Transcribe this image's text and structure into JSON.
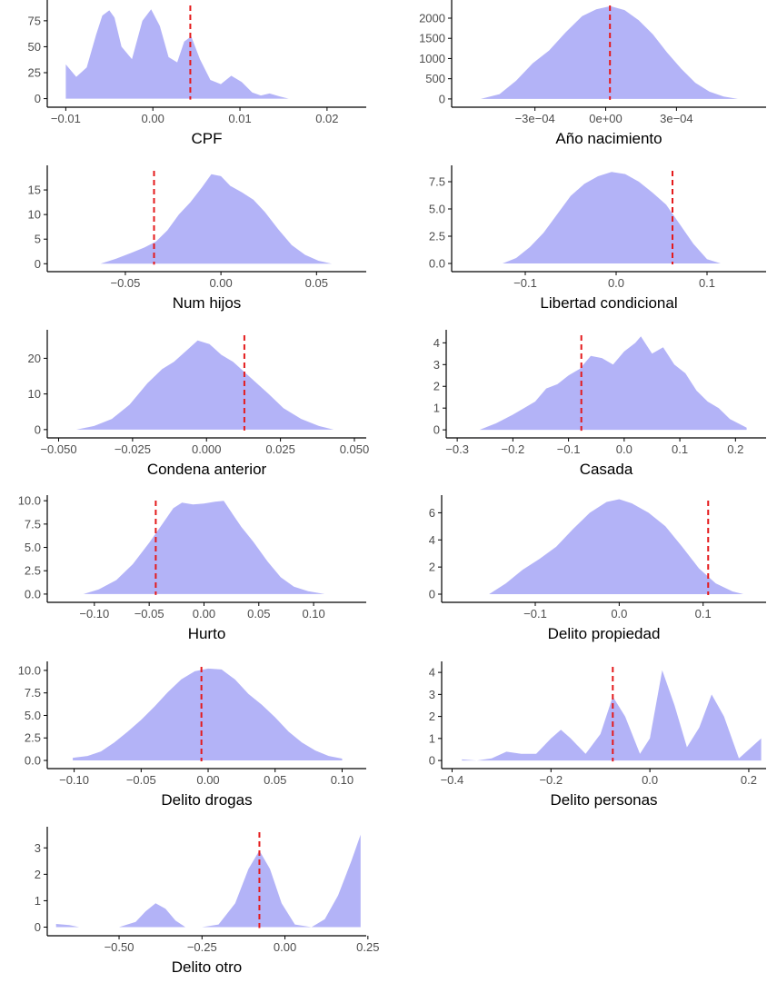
{
  "colors": {
    "density_fill": "#b3b3f7",
    "reference_line": "#e41a1c",
    "axis": "#000000",
    "tick_text": "#4d4d4d"
  },
  "chart_data": [
    {
      "type": "area",
      "xlabel": "CPF",
      "xlim": [
        -0.0115,
        0.0245
      ],
      "ylim": [
        -3,
        95
      ],
      "xticks": [
        -0.01,
        0.0,
        0.01,
        0.02
      ],
      "xtick_labels": [
        "−0.01",
        "0.00",
        "0.01",
        "0.02"
      ],
      "yticks": [
        0,
        25,
        50,
        75
      ],
      "ytick_labels": [
        "0",
        "25",
        "50",
        "75"
      ],
      "vline": 0.0043,
      "density": {
        "x": [
          -0.01,
          -0.0088,
          -0.0076,
          -0.0065,
          -0.0058,
          -0.005,
          -0.0044,
          -0.0036,
          -0.0024,
          -0.0012,
          -0.0002,
          0.0008,
          0.0018,
          0.0028,
          0.0036,
          0.0044,
          0.0054,
          0.0066,
          0.0078,
          0.009,
          0.0102,
          0.0114,
          0.0124,
          0.0134,
          0.0146,
          0.0156
        ],
        "y": [
          33,
          21,
          30,
          62,
          80,
          85,
          78,
          50,
          38,
          75,
          86,
          70,
          40,
          35,
          55,
          60,
          38,
          18,
          14,
          22,
          16,
          6,
          3,
          5,
          2,
          0
        ]
      }
    },
    {
      "type": "area",
      "xlabel": "Año nacimiento",
      "xlim": [
        -0.00063,
        0.00068
      ],
      "ylim": [
        -70,
        2450
      ],
      "xticks": [
        -0.0003,
        0.0,
        0.0003
      ],
      "xtick_labels": [
        "−3e−04",
        "0e+00",
        "3e−04"
      ],
      "yticks": [
        0,
        500,
        1000,
        1500,
        2000
      ],
      "ytick_labels": [
        "0",
        "500",
        "1000",
        "1500",
        "2000"
      ],
      "vline": 1.8e-05,
      "density": {
        "x": [
          -0.00053,
          -0.00045,
          -0.00038,
          -0.00031,
          -0.00024,
          -0.00017,
          -0.0001,
          -4e-05,
          2e-05,
          8e-05,
          0.00014,
          0.0002,
          0.00026,
          0.00032,
          0.00038,
          0.00044,
          0.0005,
          0.00056
        ],
        "y": [
          0,
          120,
          450,
          880,
          1200,
          1650,
          2050,
          2220,
          2300,
          2200,
          1950,
          1600,
          1150,
          750,
          400,
          180,
          60,
          0
        ]
      }
    },
    {
      "type": "area",
      "xlabel": "Num hijos",
      "xlim": [
        -0.088,
        0.076
      ],
      "ylim": [
        -0.5,
        20
      ],
      "xticks": [
        -0.05,
        0.0,
        0.05
      ],
      "xtick_labels": [
        "−0.05",
        "0.00",
        "0.05"
      ],
      "yticks": [
        0,
        5,
        10,
        15
      ],
      "ytick_labels": [
        "0",
        "5",
        "10",
        "15"
      ],
      "vline": -0.035,
      "density": {
        "x": [
          -0.063,
          -0.055,
          -0.047,
          -0.04,
          -0.034,
          -0.028,
          -0.022,
          -0.016,
          -0.01,
          -0.005,
          0.0,
          0.005,
          0.011,
          0.017,
          0.023,
          0.03,
          0.037,
          0.044,
          0.051,
          0.058
        ],
        "y": [
          0,
          1,
          2.2,
          3.3,
          4.5,
          6.8,
          10,
          12.5,
          15.5,
          18.2,
          17.8,
          15.8,
          14.5,
          13,
          10.5,
          7,
          3.8,
          1.8,
          0.6,
          0
        ]
      }
    },
    {
      "type": "area",
      "xlabel": "Libertad condicional",
      "xlim": [
        -0.175,
        0.165
      ],
      "ylim": [
        -0.25,
        9
      ],
      "xticks": [
        -0.1,
        0.0,
        0.1
      ],
      "xtick_labels": [
        "−0.1",
        "0.0",
        "0.1"
      ],
      "yticks": [
        0.0,
        2.5,
        5.0,
        7.5
      ],
      "ytick_labels": [
        "0.0",
        "2.5",
        "5.0",
        "7.5"
      ],
      "vline": 0.062,
      "density": {
        "x": [
          -0.125,
          -0.11,
          -0.095,
          -0.08,
          -0.065,
          -0.05,
          -0.035,
          -0.02,
          -0.005,
          0.01,
          0.025,
          0.04,
          0.055,
          0.07,
          0.085,
          0.1,
          0.115
        ],
        "y": [
          0,
          0.5,
          1.5,
          2.8,
          4.5,
          6.2,
          7.3,
          8.0,
          8.4,
          8.2,
          7.5,
          6.5,
          5.4,
          3.6,
          1.8,
          0.4,
          0
        ]
      }
    },
    {
      "type": "area",
      "xlabel": "Condena anterior",
      "xlim": [
        -0.052,
        0.054
      ],
      "ylim": [
        -0.8,
        28
      ],
      "xticks": [
        -0.05,
        -0.025,
        0.0,
        0.025,
        0.05
      ],
      "xtick_labels": [
        "−0.050",
        "−0.025",
        "0.000",
        "0.025",
        "0.050"
      ],
      "yticks": [
        0,
        10,
        20
      ],
      "ytick_labels": [
        "0",
        "10",
        "20"
      ],
      "vline": 0.0128,
      "density": {
        "x": [
          -0.044,
          -0.038,
          -0.032,
          -0.026,
          -0.02,
          -0.015,
          -0.011,
          -0.007,
          -0.003,
          0.001,
          0.005,
          0.009,
          0.013,
          0.017,
          0.021,
          0.026,
          0.032,
          0.038,
          0.043
        ],
        "y": [
          0,
          1,
          3,
          7,
          13,
          17,
          19,
          22,
          25,
          24,
          21,
          19,
          16,
          13,
          10,
          6,
          3,
          1,
          0
        ]
      }
    },
    {
      "type": "area",
      "xlabel": "Casada",
      "xlim": [
        -0.31,
        0.255
      ],
      "ylim": [
        -0.12,
        4.6
      ],
      "xticks": [
        -0.3,
        -0.2,
        -0.1,
        0.0,
        0.1,
        0.2
      ],
      "xtick_labels": [
        "−0.3",
        "−0.2",
        "−0.1",
        "0.0",
        "0.1",
        "0.2"
      ],
      "yticks": [
        0,
        1,
        2,
        3,
        4
      ],
      "ytick_labels": [
        "0",
        "1",
        "2",
        "3",
        "4"
      ],
      "vline": -0.077,
      "density": {
        "x": [
          -0.26,
          -0.23,
          -0.2,
          -0.18,
          -0.16,
          -0.14,
          -0.12,
          -0.1,
          -0.08,
          -0.06,
          -0.04,
          -0.02,
          0.0,
          0.02,
          0.03,
          0.05,
          0.07,
          0.09,
          0.11,
          0.13,
          0.15,
          0.17,
          0.19,
          0.22
        ],
        "y": [
          0,
          0.3,
          0.7,
          1.0,
          1.3,
          1.9,
          2.1,
          2.5,
          2.8,
          3.4,
          3.3,
          3.0,
          3.6,
          4.0,
          4.3,
          3.5,
          3.8,
          3.0,
          2.6,
          1.8,
          1.3,
          1.0,
          0.5,
          0.1
        ]
      }
    },
    {
      "type": "area",
      "xlabel": "Hurto",
      "xlim": [
        -0.138,
        0.148
      ],
      "ylim": [
        -0.3,
        10.6
      ],
      "xticks": [
        -0.1,
        -0.05,
        0.0,
        0.05,
        0.1
      ],
      "xtick_labels": [
        "−0.10",
        "−0.05",
        "0.00",
        "0.05",
        "0.10"
      ],
      "yticks": [
        0.0,
        2.5,
        5.0,
        7.5,
        10.0
      ],
      "ytick_labels": [
        "0.0",
        "2.5",
        "5.0",
        "7.5",
        "10.0"
      ],
      "vline": -0.044,
      "density": {
        "x": [
          -0.11,
          -0.096,
          -0.08,
          -0.065,
          -0.05,
          -0.038,
          -0.028,
          -0.02,
          -0.01,
          0.0,
          0.01,
          0.018,
          0.026,
          0.034,
          0.045,
          0.058,
          0.07,
          0.082,
          0.095,
          0.11
        ],
        "y": [
          0,
          0.5,
          1.5,
          3.2,
          5.5,
          7.5,
          9.2,
          9.8,
          9.6,
          9.7,
          9.9,
          10.0,
          8.6,
          7.2,
          5.6,
          3.5,
          1.8,
          0.8,
          0.3,
          0
        ]
      }
    },
    {
      "type": "area",
      "xlabel": "Delito propiedad",
      "xlim": [
        -0.205,
        0.175
      ],
      "ylim": [
        -0.2,
        7.3
      ],
      "xticks": [
        -0.1,
        0.0,
        0.1
      ],
      "xtick_labels": [
        "−0.1",
        "0.0",
        "0.1"
      ],
      "yticks": [
        0,
        2,
        4,
        6
      ],
      "ytick_labels": [
        "0",
        "2",
        "4",
        "6"
      ],
      "vline": 0.106,
      "density": {
        "x": [
          -0.155,
          -0.135,
          -0.115,
          -0.095,
          -0.075,
          -0.055,
          -0.035,
          -0.015,
          0.0,
          0.015,
          0.035,
          0.055,
          0.075,
          0.095,
          0.115,
          0.135,
          0.148
        ],
        "y": [
          0,
          0.8,
          1.8,
          2.6,
          3.5,
          4.8,
          6.0,
          6.8,
          7.0,
          6.7,
          6.0,
          5.0,
          3.5,
          1.9,
          0.8,
          0.2,
          0
        ]
      }
    },
    {
      "type": "area",
      "xlabel": "Delito drogas",
      "xlim": [
        -0.116,
        0.118
      ],
      "ylim": [
        -0.3,
        11
      ],
      "xticks": [
        -0.1,
        -0.05,
        0.0,
        0.05,
        0.1
      ],
      "xtick_labels": [
        "−0.10",
        "−0.05",
        "0.00",
        "0.05",
        "0.10"
      ],
      "yticks": [
        0.0,
        2.5,
        5.0,
        7.5,
        10.0
      ],
      "ytick_labels": [
        "0.0",
        "2.5",
        "5.0",
        "7.5",
        "10.0"
      ],
      "vline": -0.005,
      "density": {
        "x": [
          -0.101,
          -0.09,
          -0.08,
          -0.07,
          -0.06,
          -0.05,
          -0.04,
          -0.03,
          -0.02,
          -0.01,
          0.0,
          0.01,
          0.02,
          0.03,
          0.04,
          0.05,
          0.06,
          0.07,
          0.08,
          0.09,
          0.1
        ],
        "y": [
          0.3,
          0.5,
          1.0,
          2.0,
          3.2,
          4.5,
          6.0,
          7.6,
          9.0,
          9.9,
          10.2,
          10.1,
          9.0,
          7.4,
          6.2,
          4.8,
          3.2,
          2.0,
          1.1,
          0.5,
          0.2
        ]
      }
    },
    {
      "type": "area",
      "xlabel": "Delito personas",
      "xlim": [
        -0.41,
        0.235
      ],
      "ylim": [
        -0.12,
        4.5
      ],
      "xticks": [
        -0.4,
        -0.2,
        0.0,
        0.2
      ],
      "xtick_labels": [
        "−0.4",
        "−0.2",
        "0.0",
        "0.2"
      ],
      "yticks": [
        0,
        1,
        2,
        3,
        4
      ],
      "ytick_labels": [
        "0",
        "1",
        "2",
        "3",
        "4"
      ],
      "vline": -0.075,
      "density": {
        "x": [
          -0.38,
          -0.35,
          -0.32,
          -0.29,
          -0.26,
          -0.23,
          -0.2,
          -0.18,
          -0.16,
          -0.13,
          -0.1,
          -0.075,
          -0.05,
          -0.02,
          0.0,
          0.025,
          0.05,
          0.075,
          0.1,
          0.125,
          0.15,
          0.18,
          0.2,
          0.225
        ],
        "y": [
          0.05,
          0.0,
          0.1,
          0.4,
          0.3,
          0.3,
          1.0,
          1.4,
          1.0,
          0.3,
          1.2,
          2.9,
          2.0,
          0.3,
          1.0,
          4.1,
          2.5,
          0.6,
          1.5,
          3.0,
          2.0,
          0.1,
          0.5,
          1.0
        ]
      }
    },
    {
      "type": "area",
      "xlabel": "Delito otro",
      "xlim": [
        -0.7,
        0.245
      ],
      "ylim": [
        -0.12,
        3.8
      ],
      "xticks": [
        -0.5,
        -0.25,
        0.0,
        0.25
      ],
      "xtick_labels": [
        "−0.50",
        "−0.25",
        "0.00",
        "0.25"
      ],
      "yticks": [
        0,
        1,
        2,
        3
      ],
      "ytick_labels": [
        "0",
        "1",
        "2",
        "3"
      ],
      "vline": -0.077,
      "density": {
        "x": [
          -0.69,
          -0.65,
          -0.62,
          -0.55,
          -0.5,
          -0.45,
          -0.42,
          -0.39,
          -0.36,
          -0.33,
          -0.3,
          -0.25,
          -0.2,
          -0.15,
          -0.11,
          -0.077,
          -0.045,
          -0.01,
          0.03,
          0.08,
          0.12,
          0.16,
          0.2,
          0.228
        ],
        "y": [
          0.12,
          0.08,
          0.0,
          0.0,
          0.0,
          0.2,
          0.6,
          0.9,
          0.7,
          0.25,
          0.0,
          0.0,
          0.1,
          0.9,
          2.2,
          2.9,
          2.2,
          0.9,
          0.1,
          0.0,
          0.3,
          1.2,
          2.5,
          3.5
        ]
      }
    }
  ]
}
